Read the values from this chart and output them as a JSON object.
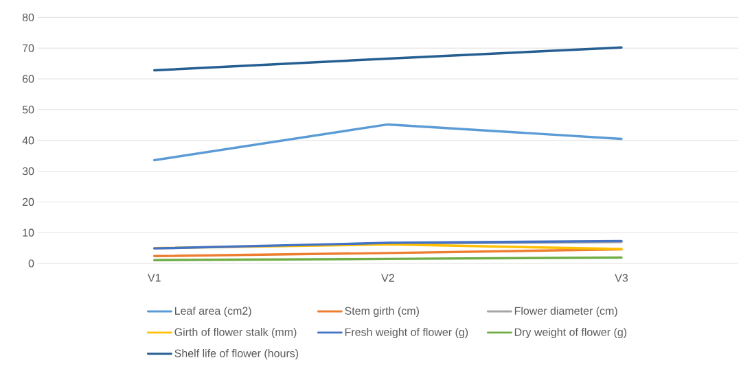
{
  "chart_data": {
    "type": "line",
    "categories": [
      "V1",
      "V2",
      "V3"
    ],
    "series": [
      {
        "name": "Leaf area (cm2)",
        "color": "#5b9bd5",
        "values": [
          33.6,
          45.2,
          40.5
        ]
      },
      {
        "name": "Stem girth (cm)",
        "color": "#ed7d31",
        "values": [
          2.4,
          3.4,
          4.6
        ]
      },
      {
        "name": "Flower diameter (cm)",
        "color": "#a5a5a5",
        "values": [
          null,
          6.5,
          7.0
        ]
      },
      {
        "name": "Girth of flower stalk (mm)",
        "color": "#ffc000",
        "values": [
          5.0,
          6.2,
          4.7
        ]
      },
      {
        "name": "Fresh weight of flower (g)",
        "color": "#4472c4",
        "values": [
          4.9,
          6.7,
          7.3
        ]
      },
      {
        "name": "Dry weight of flower (g)",
        "color": "#70ad47",
        "values": [
          1.1,
          1.5,
          1.9
        ]
      },
      {
        "name": "Shelf life of flower (hours)",
        "color": "#255e91",
        "values": [
          62.8,
          66.6,
          70.2
        ]
      }
    ],
    "ylim": [
      0,
      80
    ],
    "yticks": [
      0,
      10,
      20,
      30,
      40,
      50,
      60,
      70,
      80
    ],
    "grid": "y",
    "legend": "bottom",
    "marker": "none",
    "line_style": "solid"
  }
}
